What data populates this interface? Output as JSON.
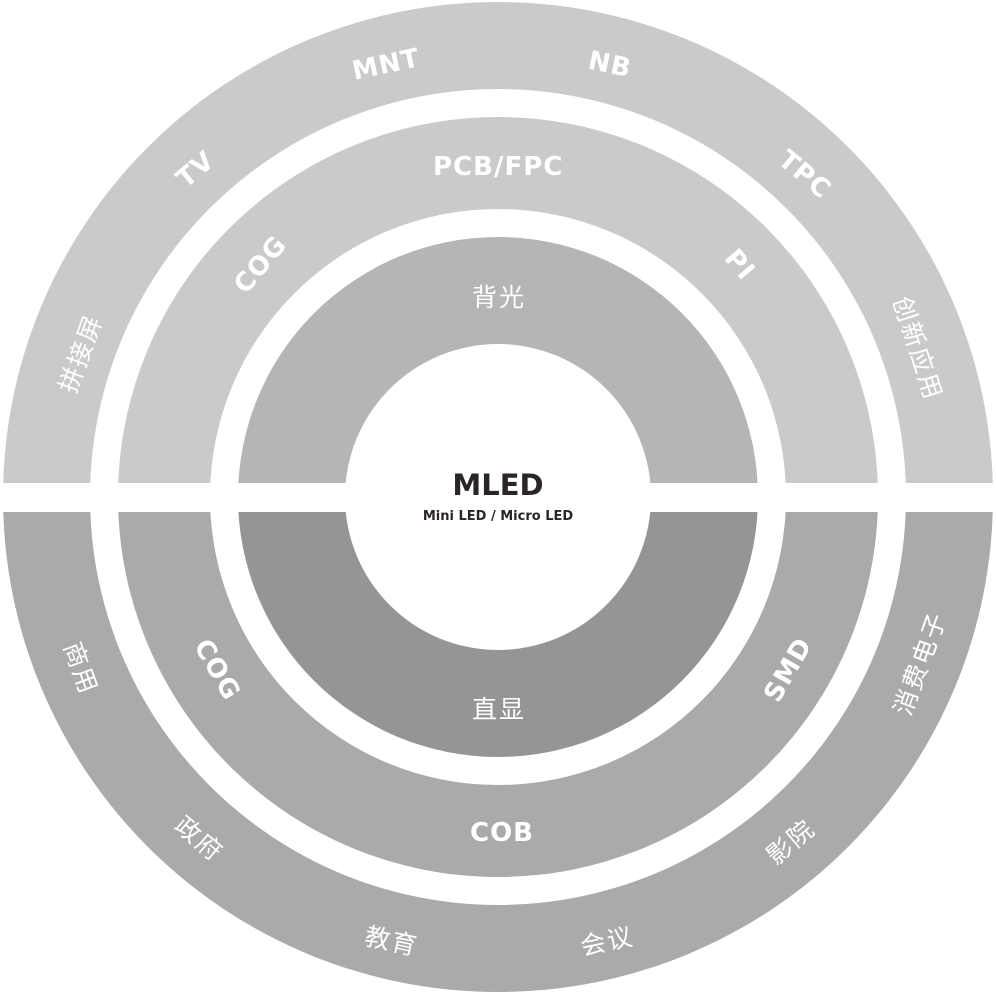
{
  "center": {
    "title": "MLED",
    "subtitle": "Mini LED / Micro LED"
  },
  "colors": {
    "outer_top": "#c9cac9",
    "outer_bottom": "#a9aaa9",
    "inner_top": "#b4b5b4",
    "inner_bottom": "#959595",
    "text_center": "#2a2526"
  },
  "inner_ring": {
    "top": "背光",
    "bottom": "直显"
  },
  "middle_ring": {
    "top": [
      "COG",
      "PCB/FPC",
      "PI"
    ],
    "bottom": [
      "COG",
      "SMD",
      "COB"
    ]
  },
  "outer_ring": {
    "top": [
      "拼接屏",
      "TV",
      "MNT",
      "NB",
      "TPC",
      "创新应用"
    ],
    "bottom": [
      "商用",
      "政府",
      "教育",
      "会议",
      "影院",
      "消费电子"
    ]
  }
}
